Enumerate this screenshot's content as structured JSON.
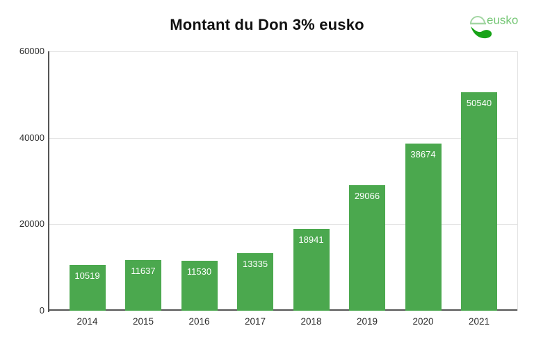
{
  "chart_data": {
    "type": "bar",
    "title": "Montant du Don 3% eusko",
    "categories": [
      "2014",
      "2015",
      "2016",
      "2017",
      "2018",
      "2019",
      "2020",
      "2021"
    ],
    "values": [
      10519,
      11637,
      11530,
      13335,
      18941,
      29066,
      38674,
      50540
    ],
    "yticks": [
      0,
      20000,
      40000,
      60000
    ],
    "ylim": [
      0,
      60000
    ],
    "xlabel": "",
    "ylabel": "",
    "grid": true,
    "legend": "none",
    "bar_color": "#4ba84e",
    "value_label_color": "#ffffff",
    "grid_color": "#e3e3e3",
    "axis_color": "#555555",
    "tick_label_color": "#2b2b2b",
    "category_label_color": "#2b2b2b",
    "title_color": "#111111"
  },
  "logo": {
    "text": "eusko",
    "text_color": "#74c674",
    "dome_color": "#a3d6a3",
    "swoosh_color": "#17a317"
  }
}
